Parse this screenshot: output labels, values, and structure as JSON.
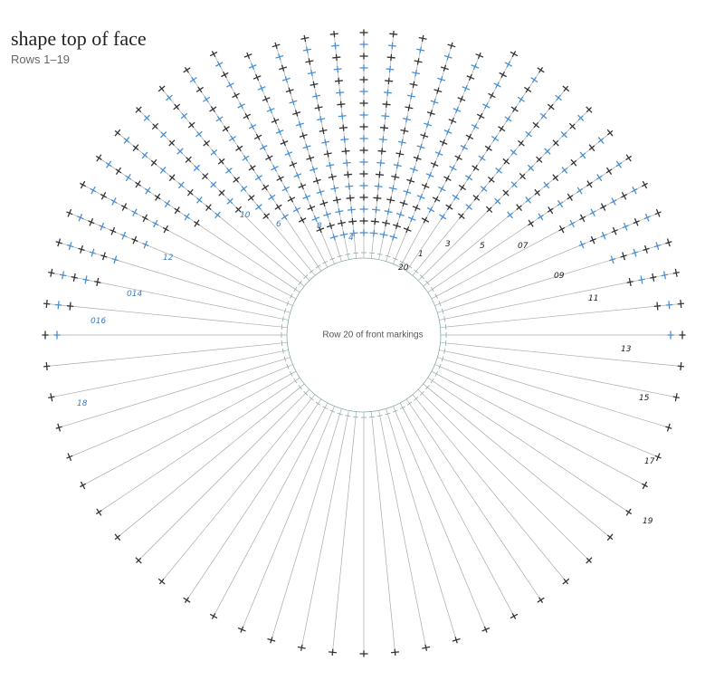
{
  "header": {
    "title": "shape top of face",
    "subtitle": "Rows 1–19"
  },
  "center_label": "Row 20 of front markings",
  "row_labels": [
    "4",
    "6",
    "8",
    "10",
    "12",
    "014",
    "016",
    "18",
    "20",
    "1",
    "3",
    "5",
    "07",
    "09",
    "11",
    "13",
    "15",
    "17",
    "19"
  ]
}
